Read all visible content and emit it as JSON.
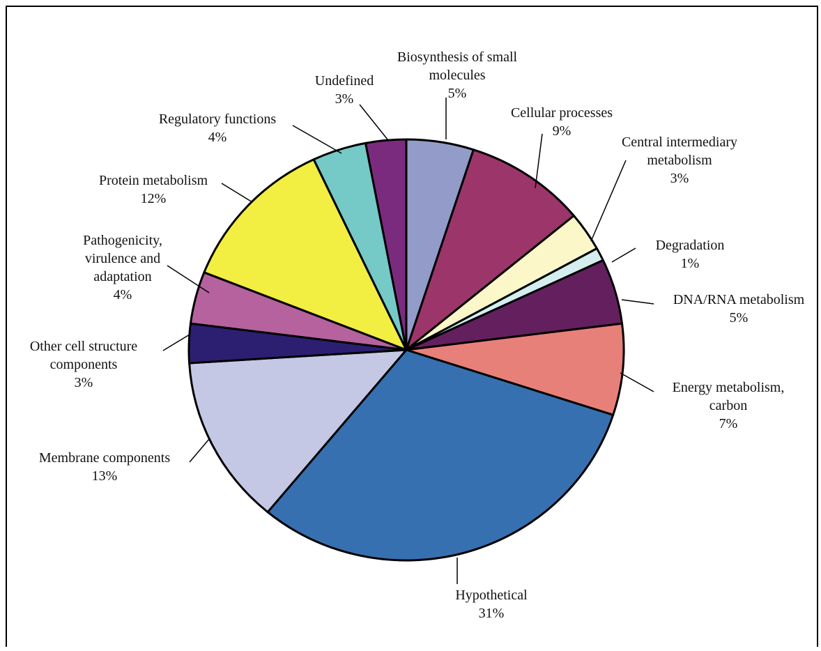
{
  "chart_data": {
    "type": "pie",
    "title": "",
    "slices": [
      {
        "label": [
          "Biosynthesis of small",
          "molecules"
        ],
        "pct_text": "5%",
        "value": 5,
        "color": "#939bc9"
      },
      {
        "label": [
          "Cellular processes"
        ],
        "pct_text": "9%",
        "value": 9,
        "color": "#9c366a"
      },
      {
        "label": [
          "Central intermediary",
          "metabolism"
        ],
        "pct_text": "3%",
        "value": 3,
        "color": "#fbf7c9"
      },
      {
        "label": [
          "Degradation"
        ],
        "pct_text": "1%",
        "value": 1,
        "color": "#d4eef0"
      },
      {
        "label": [
          "DNA/RNA metabolism"
        ],
        "pct_text": "5%",
        "value": 5,
        "color": "#64205e"
      },
      {
        "label": [
          "Energy metabolism,",
          "carbon"
        ],
        "pct_text": "7%",
        "value": 7,
        "color": "#e8807a"
      },
      {
        "label": [
          "Hypothetical"
        ],
        "pct_text": "31%",
        "value": 31,
        "color": "#3670b0"
      },
      {
        "label": [
          "Membrane components"
        ],
        "pct_text": "13%",
        "value": 13,
        "color": "#c4c8e4"
      },
      {
        "label": [
          "Other cell  structure",
          "components"
        ],
        "pct_text": "3%",
        "value": 3,
        "color": "#2c1f72"
      },
      {
        "label": [
          "Pathogenicity,",
          "virulence and",
          "adaptation"
        ],
        "pct_text": "4%",
        "value": 4,
        "color": "#b5629e"
      },
      {
        "label": [
          "Protein metabolism"
        ],
        "pct_text": "12%",
        "value": 12,
        "color": "#f2ee42"
      },
      {
        "label": [
          "Regulatory functions"
        ],
        "pct_text": "4%",
        "value": 4,
        "color": "#75c9c7"
      },
      {
        "label": [
          "Undefined"
        ],
        "pct_text": "3%",
        "value": 3,
        "color": "#7b2b7e"
      }
    ]
  }
}
